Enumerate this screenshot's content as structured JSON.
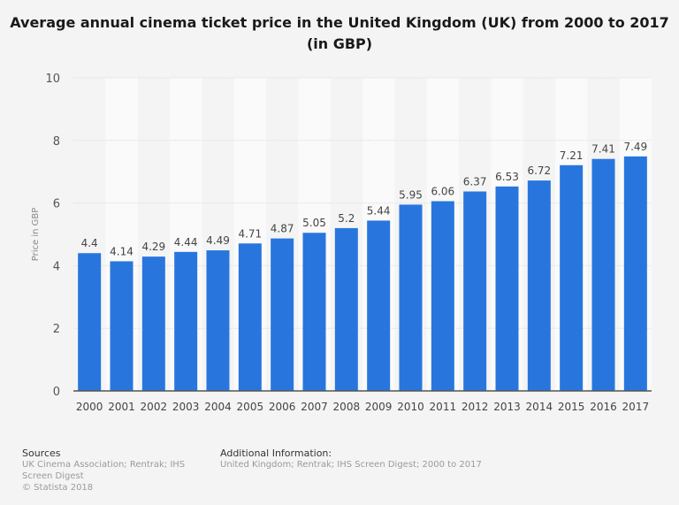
{
  "chart_data": {
    "type": "bar",
    "title": "Average annual cinema ticket price in the United Kingdom (UK) from 2000 to 2017 (in GBP)",
    "xlabel": "",
    "ylabel": "Price in GBP",
    "ylim": [
      0,
      10
    ],
    "yticks": [
      0,
      2,
      4,
      6,
      8,
      10
    ],
    "grid": true,
    "categories": [
      "2000",
      "2001",
      "2002",
      "2003",
      "2004",
      "2005",
      "2006",
      "2007",
      "2008",
      "2009",
      "2010",
      "2011",
      "2012",
      "2013",
      "2014",
      "2015",
      "2016",
      "2017"
    ],
    "values": [
      4.4,
      4.14,
      4.29,
      4.44,
      4.49,
      4.71,
      4.87,
      5.05,
      5.2,
      5.44,
      5.95,
      6.06,
      6.37,
      6.53,
      6.72,
      7.21,
      7.41,
      7.49
    ],
    "bar_color": "#2876dd"
  },
  "footer": {
    "sources_heading": "Sources",
    "sources_text": "UK Cinema Association; Rentrak; IHS Screen Digest",
    "copyright": "© Statista 2018",
    "additional_heading": "Additional Information:",
    "additional_text": "United Kingdom; Rentrak; IHS Screen Digest; 2000 to 2017"
  }
}
